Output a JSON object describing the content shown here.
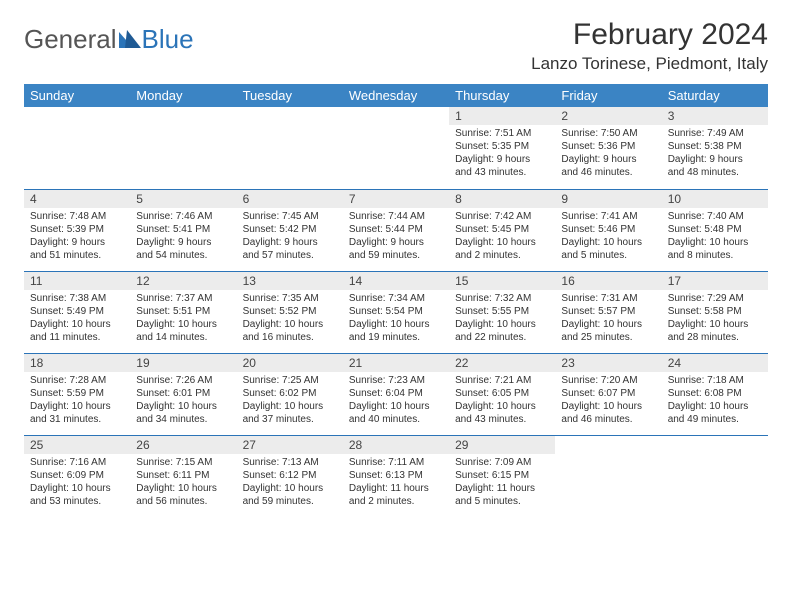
{
  "logo": {
    "text1": "General",
    "text2": "Blue",
    "tri_color": "#2b74b8"
  },
  "title": "February 2024",
  "location": "Lanzo Torinese, Piedmont, Italy",
  "colors": {
    "header_bg": "#3b84c4",
    "header_text": "#ffffff",
    "grid_line": "#2b74b8",
    "daynum_bg": "#ececec",
    "body_text": "#333333"
  },
  "weekdays": [
    "Sunday",
    "Monday",
    "Tuesday",
    "Wednesday",
    "Thursday",
    "Friday",
    "Saturday"
  ],
  "weeks": [
    [
      null,
      null,
      null,
      null,
      {
        "n": "1",
        "sr": "Sunrise: 7:51 AM",
        "ss": "Sunset: 5:35 PM",
        "d1": "Daylight: 9 hours",
        "d2": "and 43 minutes."
      },
      {
        "n": "2",
        "sr": "Sunrise: 7:50 AM",
        "ss": "Sunset: 5:36 PM",
        "d1": "Daylight: 9 hours",
        "d2": "and 46 minutes."
      },
      {
        "n": "3",
        "sr": "Sunrise: 7:49 AM",
        "ss": "Sunset: 5:38 PM",
        "d1": "Daylight: 9 hours",
        "d2": "and 48 minutes."
      }
    ],
    [
      {
        "n": "4",
        "sr": "Sunrise: 7:48 AM",
        "ss": "Sunset: 5:39 PM",
        "d1": "Daylight: 9 hours",
        "d2": "and 51 minutes."
      },
      {
        "n": "5",
        "sr": "Sunrise: 7:46 AM",
        "ss": "Sunset: 5:41 PM",
        "d1": "Daylight: 9 hours",
        "d2": "and 54 minutes."
      },
      {
        "n": "6",
        "sr": "Sunrise: 7:45 AM",
        "ss": "Sunset: 5:42 PM",
        "d1": "Daylight: 9 hours",
        "d2": "and 57 minutes."
      },
      {
        "n": "7",
        "sr": "Sunrise: 7:44 AM",
        "ss": "Sunset: 5:44 PM",
        "d1": "Daylight: 9 hours",
        "d2": "and 59 minutes."
      },
      {
        "n": "8",
        "sr": "Sunrise: 7:42 AM",
        "ss": "Sunset: 5:45 PM",
        "d1": "Daylight: 10 hours",
        "d2": "and 2 minutes."
      },
      {
        "n": "9",
        "sr": "Sunrise: 7:41 AM",
        "ss": "Sunset: 5:46 PM",
        "d1": "Daylight: 10 hours",
        "d2": "and 5 minutes."
      },
      {
        "n": "10",
        "sr": "Sunrise: 7:40 AM",
        "ss": "Sunset: 5:48 PM",
        "d1": "Daylight: 10 hours",
        "d2": "and 8 minutes."
      }
    ],
    [
      {
        "n": "11",
        "sr": "Sunrise: 7:38 AM",
        "ss": "Sunset: 5:49 PM",
        "d1": "Daylight: 10 hours",
        "d2": "and 11 minutes."
      },
      {
        "n": "12",
        "sr": "Sunrise: 7:37 AM",
        "ss": "Sunset: 5:51 PM",
        "d1": "Daylight: 10 hours",
        "d2": "and 14 minutes."
      },
      {
        "n": "13",
        "sr": "Sunrise: 7:35 AM",
        "ss": "Sunset: 5:52 PM",
        "d1": "Daylight: 10 hours",
        "d2": "and 16 minutes."
      },
      {
        "n": "14",
        "sr": "Sunrise: 7:34 AM",
        "ss": "Sunset: 5:54 PM",
        "d1": "Daylight: 10 hours",
        "d2": "and 19 minutes."
      },
      {
        "n": "15",
        "sr": "Sunrise: 7:32 AM",
        "ss": "Sunset: 5:55 PM",
        "d1": "Daylight: 10 hours",
        "d2": "and 22 minutes."
      },
      {
        "n": "16",
        "sr": "Sunrise: 7:31 AM",
        "ss": "Sunset: 5:57 PM",
        "d1": "Daylight: 10 hours",
        "d2": "and 25 minutes."
      },
      {
        "n": "17",
        "sr": "Sunrise: 7:29 AM",
        "ss": "Sunset: 5:58 PM",
        "d1": "Daylight: 10 hours",
        "d2": "and 28 minutes."
      }
    ],
    [
      {
        "n": "18",
        "sr": "Sunrise: 7:28 AM",
        "ss": "Sunset: 5:59 PM",
        "d1": "Daylight: 10 hours",
        "d2": "and 31 minutes."
      },
      {
        "n": "19",
        "sr": "Sunrise: 7:26 AM",
        "ss": "Sunset: 6:01 PM",
        "d1": "Daylight: 10 hours",
        "d2": "and 34 minutes."
      },
      {
        "n": "20",
        "sr": "Sunrise: 7:25 AM",
        "ss": "Sunset: 6:02 PM",
        "d1": "Daylight: 10 hours",
        "d2": "and 37 minutes."
      },
      {
        "n": "21",
        "sr": "Sunrise: 7:23 AM",
        "ss": "Sunset: 6:04 PM",
        "d1": "Daylight: 10 hours",
        "d2": "and 40 minutes."
      },
      {
        "n": "22",
        "sr": "Sunrise: 7:21 AM",
        "ss": "Sunset: 6:05 PM",
        "d1": "Daylight: 10 hours",
        "d2": "and 43 minutes."
      },
      {
        "n": "23",
        "sr": "Sunrise: 7:20 AM",
        "ss": "Sunset: 6:07 PM",
        "d1": "Daylight: 10 hours",
        "d2": "and 46 minutes."
      },
      {
        "n": "24",
        "sr": "Sunrise: 7:18 AM",
        "ss": "Sunset: 6:08 PM",
        "d1": "Daylight: 10 hours",
        "d2": "and 49 minutes."
      }
    ],
    [
      {
        "n": "25",
        "sr": "Sunrise: 7:16 AM",
        "ss": "Sunset: 6:09 PM",
        "d1": "Daylight: 10 hours",
        "d2": "and 53 minutes."
      },
      {
        "n": "26",
        "sr": "Sunrise: 7:15 AM",
        "ss": "Sunset: 6:11 PM",
        "d1": "Daylight: 10 hours",
        "d2": "and 56 minutes."
      },
      {
        "n": "27",
        "sr": "Sunrise: 7:13 AM",
        "ss": "Sunset: 6:12 PM",
        "d1": "Daylight: 10 hours",
        "d2": "and 59 minutes."
      },
      {
        "n": "28",
        "sr": "Sunrise: 7:11 AM",
        "ss": "Sunset: 6:13 PM",
        "d1": "Daylight: 11 hours",
        "d2": "and 2 minutes."
      },
      {
        "n": "29",
        "sr": "Sunrise: 7:09 AM",
        "ss": "Sunset: 6:15 PM",
        "d1": "Daylight: 11 hours",
        "d2": "and 5 minutes."
      },
      null,
      null
    ]
  ]
}
